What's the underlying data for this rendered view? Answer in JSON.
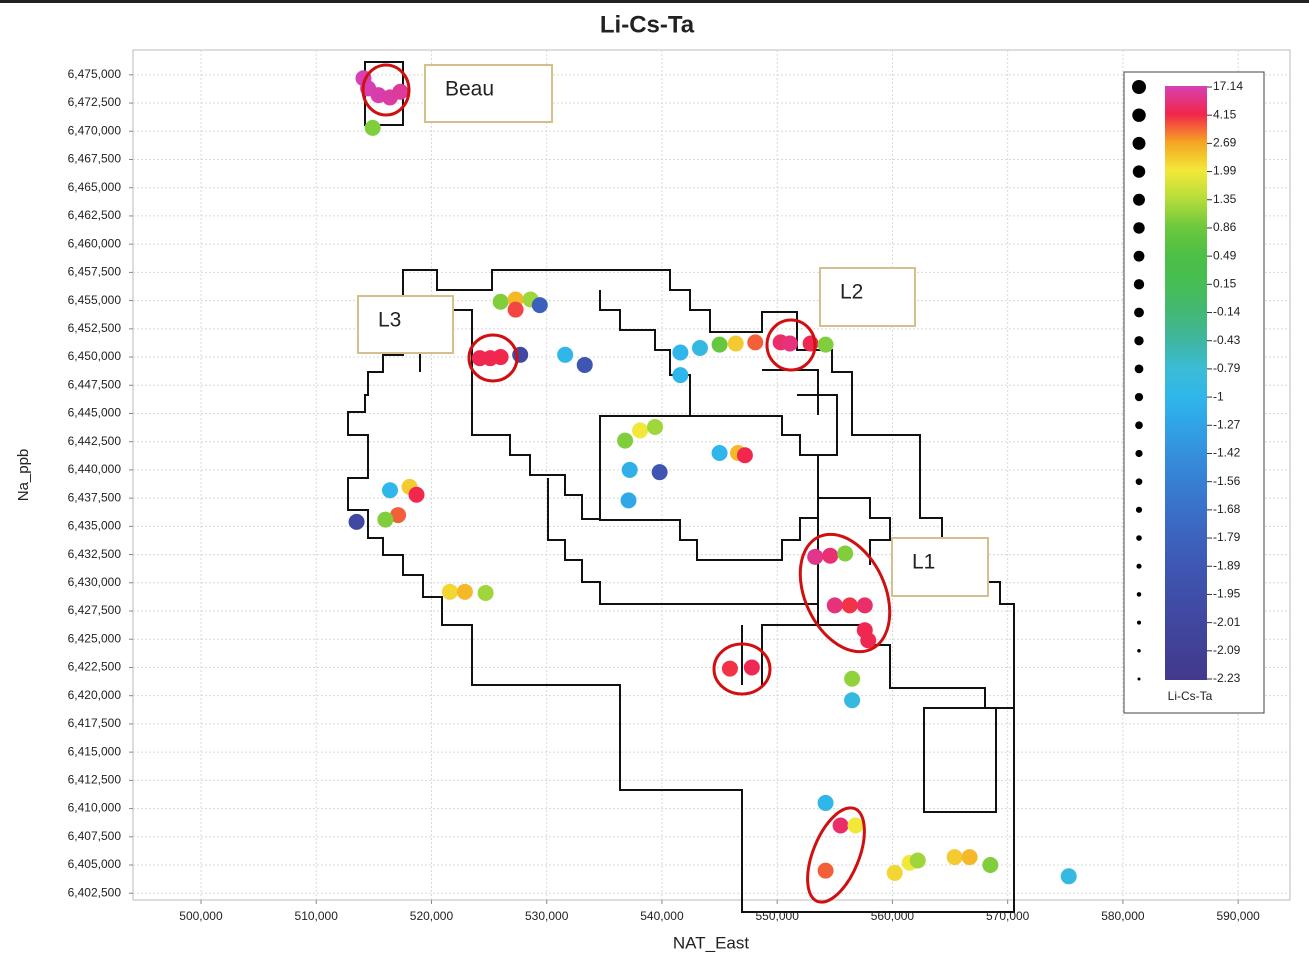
{
  "chart_data": {
    "type": "scatter",
    "title": "Li-Cs-Ta",
    "x_label": "NAT_East",
    "y_label": "Na_ppb",
    "colorbar_title": "Li-Cs-Ta",
    "annotations": [
      "Beau",
      "L3",
      "L2",
      "L1"
    ],
    "grid": true,
    "xlim": [
      494100,
      594500
    ],
    "ylim": [
      6401900,
      6477200
    ],
    "xticks": [
      {
        "value": 500000,
        "label": "500,000"
      },
      {
        "value": 510000,
        "label": "510,000"
      },
      {
        "value": 520000,
        "label": "520,000"
      },
      {
        "value": 530000,
        "label": "530,000"
      },
      {
        "value": 540000,
        "label": "540,000"
      },
      {
        "value": 550000,
        "label": "550,000"
      },
      {
        "value": 560000,
        "label": "560,000"
      },
      {
        "value": 570000,
        "label": "570,000"
      },
      {
        "value": 580000,
        "label": "580,000"
      },
      {
        "value": 590000,
        "label": "590,000"
      }
    ],
    "yticks": [
      {
        "value": 6402500,
        "label": "6,402,500"
      },
      {
        "value": 6405000,
        "label": "6,405,000"
      },
      {
        "value": 6407500,
        "label": "6,407,500"
      },
      {
        "value": 6410000,
        "label": "6,410,000"
      },
      {
        "value": 6412500,
        "label": "6,412,500"
      },
      {
        "value": 6415000,
        "label": "6,415,000"
      },
      {
        "value": 6417500,
        "label": "6,417,500"
      },
      {
        "value": 6420000,
        "label": "6,420,000"
      },
      {
        "value": 6422500,
        "label": "6,422,500"
      },
      {
        "value": 6425000,
        "label": "6,425,000"
      },
      {
        "value": 6427500,
        "label": "6,427,500"
      },
      {
        "value": 6430000,
        "label": "6,430,000"
      },
      {
        "value": 6432500,
        "label": "6,432,500"
      },
      {
        "value": 6435000,
        "label": "6,435,000"
      },
      {
        "value": 6437500,
        "label": "6,437,500"
      },
      {
        "value": 6440000,
        "label": "6,440,000"
      },
      {
        "value": 6442500,
        "label": "6,442,500"
      },
      {
        "value": 6445000,
        "label": "6,445,000"
      },
      {
        "value": 6447500,
        "label": "6,447,500"
      },
      {
        "value": 6450000,
        "label": "6,450,000"
      },
      {
        "value": 6452500,
        "label": "6,452,500"
      },
      {
        "value": 6455000,
        "label": "6,455,000"
      },
      {
        "value": 6457500,
        "label": "6,457,500"
      },
      {
        "value": 6460000,
        "label": "6,460,000"
      },
      {
        "value": 6462500,
        "label": "6,462,500"
      },
      {
        "value": 6465000,
        "label": "6,465,000"
      },
      {
        "value": 6467500,
        "label": "6,467,500"
      },
      {
        "value": 6470000,
        "label": "6,470,000"
      },
      {
        "value": 6472500,
        "label": "6,472,500"
      },
      {
        "value": 6475000,
        "label": "6,475,000"
      }
    ],
    "colorbar_labels": [
      17.14,
      4.15,
      2.69,
      1.99,
      1.35,
      0.86,
      0.49,
      0.15,
      -0.14,
      -0.43,
      -0.79,
      -1,
      -1.27,
      -1.42,
      -1.56,
      -1.68,
      -1.79,
      -1.89,
      -1.95,
      -2.01,
      -2.09,
      -2.23
    ],
    "colorscale": [
      "#d640b4",
      "#f2264a",
      "#f5a623",
      "#f2e93a",
      "#b5dc3a",
      "#6cc83d",
      "#4cbf45",
      "#47bd55",
      "#43b874",
      "#3fb6a0",
      "#3bbcd6",
      "#2fb6ea",
      "#31a3e6",
      "#3590dc",
      "#377fd2",
      "#3a70c8",
      "#3c62bd",
      "#3e57b3",
      "#3f4ea9",
      "#40479f",
      "#414095",
      "#42398b"
    ],
    "x": [
      514100,
      514500,
      515400,
      516400,
      517300,
      514900,
      526000,
      527300,
      528600,
      527300,
      529400,
      524200,
      525100,
      526000,
      527700,
      531600,
      533300,
      541600,
      543300,
      545000,
      546400,
      548100,
      550300,
      551100,
      552900,
      554200,
      541600,
      536800,
      538100,
      539400,
      537200,
      539800,
      537100,
      545000,
      546600,
      547200,
      516400,
      518100,
      518700,
      517100,
      516000,
      513500,
      521600,
      522900,
      524700,
      553300,
      554600,
      555900,
      555000,
      556300,
      557600,
      557600,
      557900,
      545900,
      547800,
      556500,
      556500,
      554200,
      555500,
      556800,
      554200,
      560200,
      561500,
      562200,
      565400,
      566700,
      568500,
      575300
    ],
    "y": [
      6474700,
      6473800,
      6473200,
      6473000,
      6473500,
      6470300,
      6454900,
      6455100,
      6455100,
      6454200,
      6454600,
      6449900,
      6449900,
      6450000,
      6450200,
      6450200,
      6449300,
      6450400,
      6450800,
      6451100,
      6451200,
      6451300,
      6451300,
      6451200,
      6451200,
      6451100,
      6448400,
      6442600,
      6443500,
      6443800,
      6440000,
      6439800,
      6437300,
      6441500,
      6441500,
      6441300,
      6438200,
      6438500,
      6437800,
      6436000,
      6435600,
      6435400,
      6429200,
      6429200,
      6429100,
      6432300,
      6432400,
      6432600,
      6428000,
      6428000,
      6428000,
      6425800,
      6424900,
      6422400,
      6422500,
      6421500,
      6419600,
      6410500,
      6408500,
      6408500,
      6404500,
      6404300,
      6405200,
      6405400,
      6405700,
      6405700,
      6405000,
      6404000
    ],
    "values": [
      17,
      17,
      16,
      15,
      14,
      1.0,
      1.0,
      2.5,
      1.2,
      3.8,
      -1.8,
      5,
      5,
      4.6,
      -2.0,
      -1.0,
      -1.9,
      -1.0,
      -0.9,
      0.8,
      2.3,
      3.5,
      8,
      10,
      5,
      1.0,
      -1.0,
      1.0,
      2.0,
      1.2,
      -1.1,
      -1.9,
      -1.2,
      -1.0,
      2.5,
      4.5,
      -1.0,
      2.3,
      4.5,
      3.5,
      1.0,
      -2.0,
      2.2,
      2.5,
      1.2,
      12,
      9,
      1.0,
      10,
      4.0,
      8,
      5,
      5,
      4.0,
      5.5,
      1.1,
      -0.9,
      -1.0,
      8,
      2.0,
      3.5,
      2.2,
      2.0,
      1.2,
      2.3,
      2.5,
      1.0,
      -0.9
    ]
  }
}
